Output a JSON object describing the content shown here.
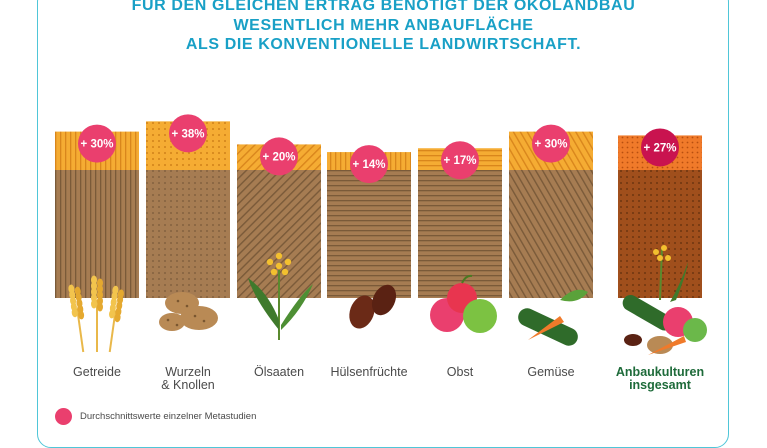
{
  "title_lines": [
    "Für den gleichen Ertrag benötigt der Ökolandbau",
    "wesentlich mehr Anbaufläche",
    "als die konventionelle Landwirtschaft."
  ],
  "legend": {
    "label": "Durchschnittswerte einzelner Metastudien",
    "color": "#ea3f6e"
  },
  "chart_data": {
    "type": "bar",
    "categories": [
      "Getreide",
      "Wurzeln & Knollen",
      "Ölsaaten",
      "Hülsenfrüchte",
      "Obst",
      "Gemüse",
      "Anbaukulturen insgesamt"
    ],
    "values": [
      30,
      38,
      20,
      14,
      17,
      30,
      27
    ],
    "value_labels": [
      "+ 30%",
      "+ 38%",
      "+ 20%",
      "+ 14%",
      "+ 17%",
      "+ 30%",
      "+ 27%"
    ],
    "baseline": 100,
    "unit": "%",
    "highlight_category": "Anbaukulturen insgesamt",
    "colors": {
      "base": "#a67c52",
      "extra": "#f5ac33",
      "extra_total": "#f07a2a",
      "badge": "#ea3f6e",
      "badge_total": "#c9134f"
    }
  }
}
